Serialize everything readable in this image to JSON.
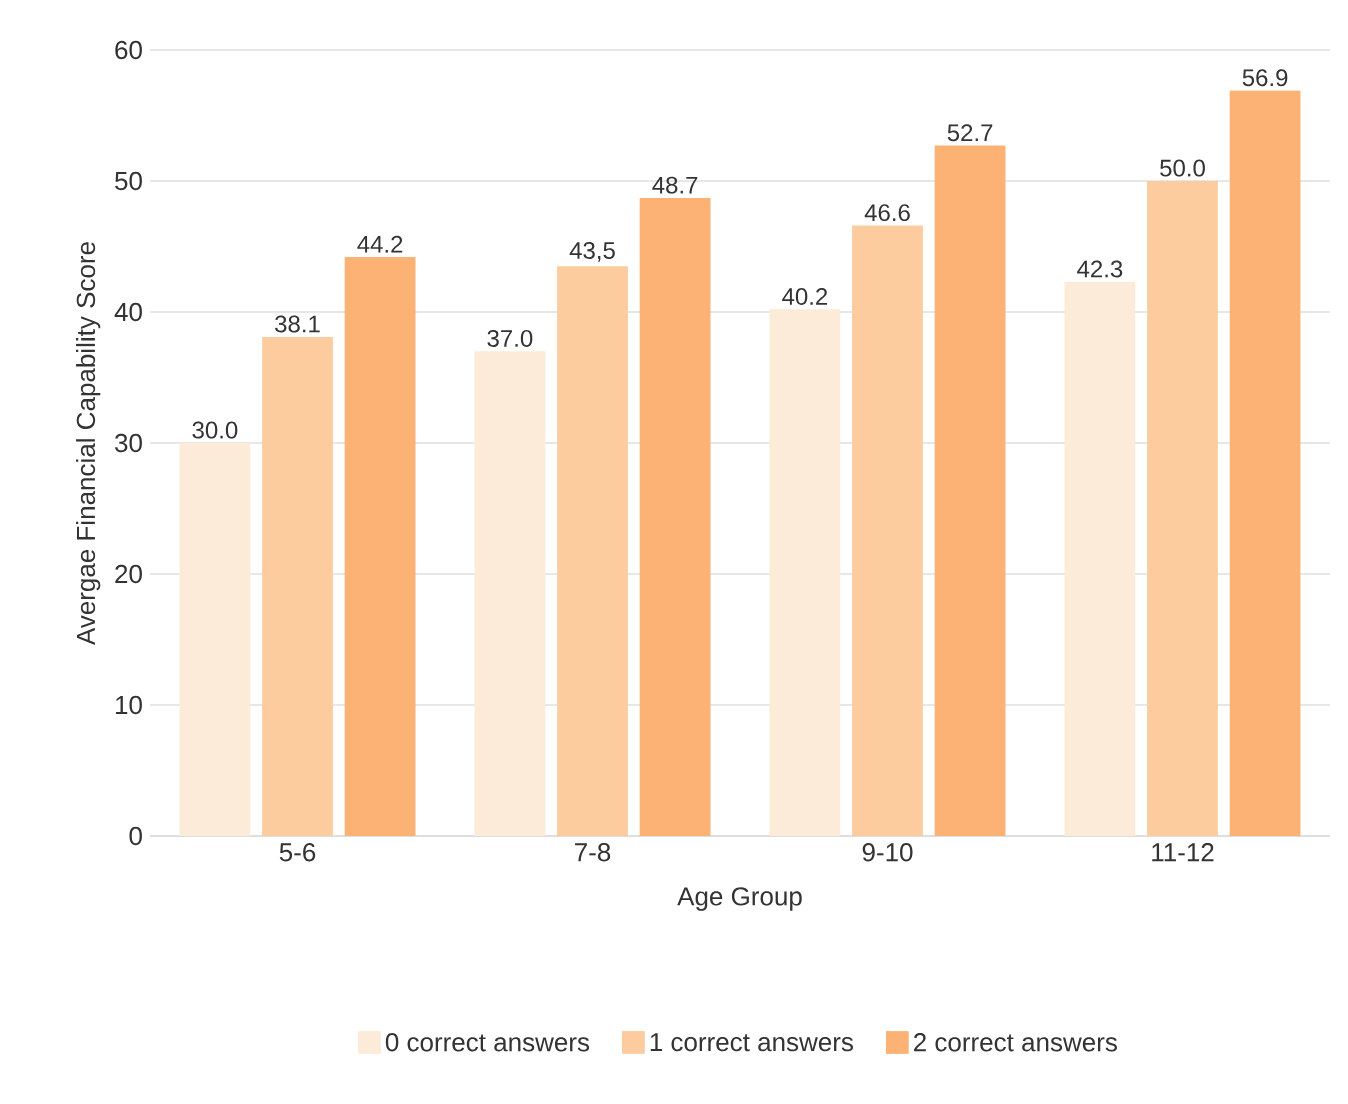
{
  "chart_data": {
    "type": "bar",
    "xlabel": "Age Group",
    "ylabel": "Avergae Financial Capability Score",
    "categories": [
      "5-6",
      "7-8",
      "9-10",
      "11-12"
    ],
    "series": [
      {
        "name": "0 correct answers",
        "color": "#fdebd9",
        "values": [
          30.0,
          37.0,
          40.2,
          42.3
        ],
        "value_labels": [
          "30.0",
          "37.0",
          "40.2",
          "42.3"
        ]
      },
      {
        "name": "1 correct answers",
        "color": "#fccc9f",
        "values": [
          38.1,
          43.5,
          46.6,
          50.0
        ],
        "value_labels": [
          "38.1",
          "43,5",
          "46.6",
          "50.0"
        ]
      },
      {
        "name": "2 correct answers",
        "color": "#fbb274",
        "values": [
          44.2,
          48.7,
          52.7,
          56.9
        ],
        "value_labels": [
          "44.2",
          "48.7",
          "52.7",
          "56.9"
        ]
      }
    ],
    "ylim": [
      0,
      60
    ],
    "yticks": [
      0,
      10,
      20,
      30,
      40,
      50,
      60
    ],
    "grid": "y",
    "legend": "bottom"
  }
}
